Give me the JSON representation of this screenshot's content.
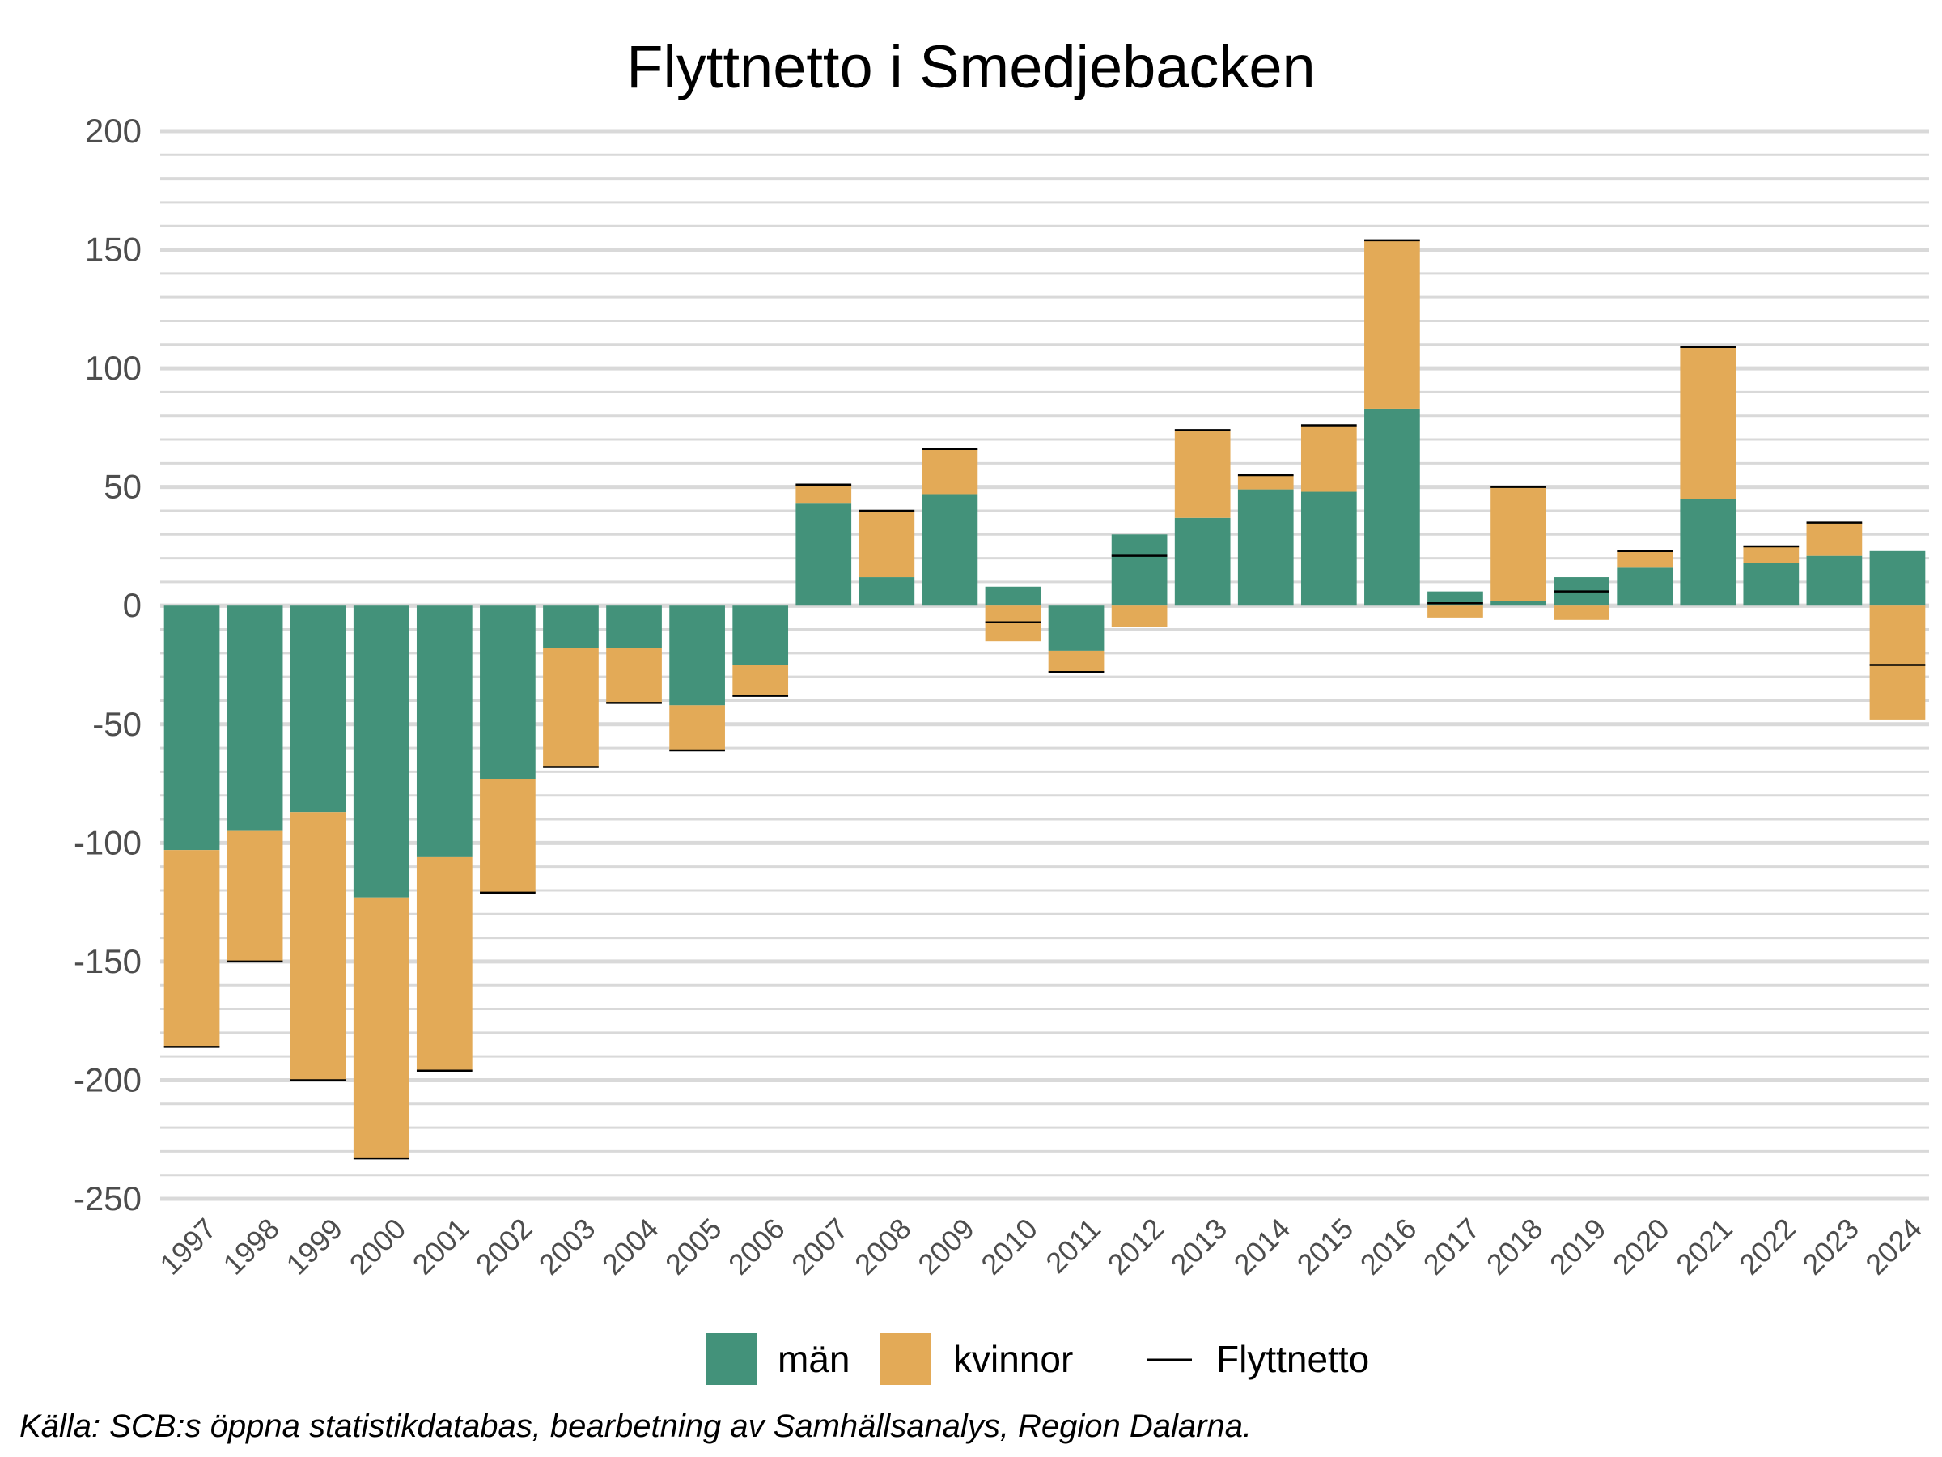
{
  "chart_data": {
    "type": "bar",
    "stacked": true,
    "title": "Flyttnetto i Smedjebacken",
    "categories": [
      "1997",
      "1998",
      "1999",
      "2000",
      "2001",
      "2002",
      "2003",
      "2004",
      "2005",
      "2006",
      "2007",
      "2008",
      "2009",
      "2010",
      "2011",
      "2012",
      "2013",
      "2014",
      "2015",
      "2016",
      "2017",
      "2018",
      "2019",
      "2020",
      "2021",
      "2022",
      "2023",
      "2024"
    ],
    "series": [
      {
        "name": "män",
        "color": "#43927a",
        "values": [
          -103,
          -95,
          -87,
          -123,
          -106,
          -73,
          -18,
          -18,
          -42,
          -25,
          43,
          12,
          47,
          8,
          -19,
          30,
          37,
          49,
          48,
          83,
          6,
          2,
          12,
          16,
          45,
          18,
          21,
          23
        ]
      },
      {
        "name": "kvinnor",
        "color": "#e3aa57",
        "values": [
          -83,
          -55,
          -113,
          -110,
          -90,
          -48,
          -50,
          -23,
          -19,
          -13,
          8,
          28,
          19,
          -15,
          -9,
          -9,
          37,
          6,
          28,
          71,
          -5,
          48,
          -6,
          7,
          64,
          7,
          14,
          -48
        ]
      }
    ],
    "line_series": {
      "name": "Flyttnetto",
      "color": "#000000",
      "values": [
        -186,
        -150,
        -200,
        -233,
        -196,
        -121,
        -68,
        -41,
        -61,
        -38,
        51,
        40,
        66,
        -7,
        -28,
        21,
        74,
        55,
        76,
        154,
        1,
        50,
        6,
        23,
        109,
        25,
        35,
        -25
      ]
    },
    "ylim": [
      -250,
      200
    ],
    "yticks": [
      "200",
      "150",
      "100",
      "50",
      "0",
      "-50",
      "-100",
      "-150",
      "-200",
      "-250"
    ],
    "ytick_values": [
      200,
      150,
      100,
      50,
      0,
      -50,
      -100,
      -150,
      -200,
      -250
    ],
    "grid": true,
    "legend_position": "bottom",
    "xlabel": "",
    "ylabel": ""
  },
  "caption": "Källa: SCB:s öppna statistikdatabas, bearbetning av Samhällsanalys, Region Dalarna."
}
